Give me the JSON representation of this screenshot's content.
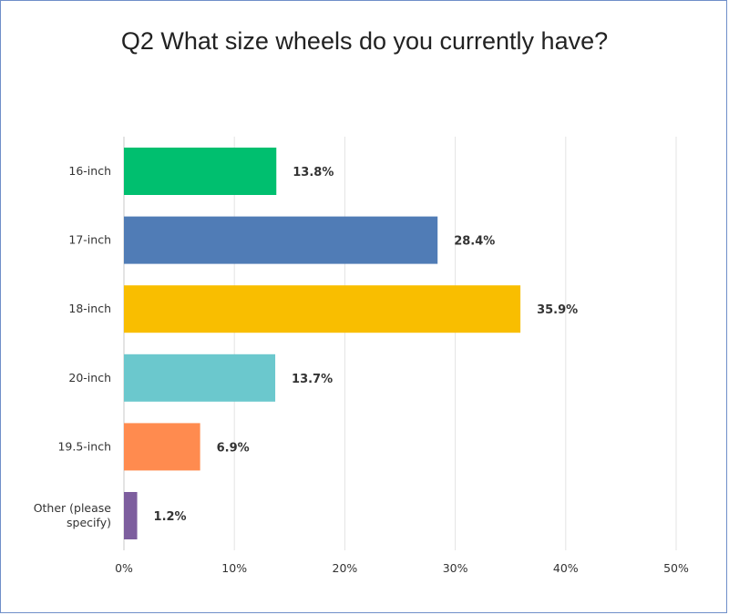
{
  "chart_data": {
    "type": "bar",
    "orientation": "horizontal",
    "title": "Q2 What size wheels do you currently have?",
    "categories": [
      "16-inch",
      "17-inch",
      "18-inch",
      "20-inch",
      "19.5-inch",
      "Other (please specify)"
    ],
    "category_lines": [
      [
        "16-inch"
      ],
      [
        "17-inch"
      ],
      [
        "18-inch"
      ],
      [
        "20-inch"
      ],
      [
        "19.5-inch"
      ],
      [
        "Other (please",
        "specify)"
      ]
    ],
    "values": [
      13.8,
      28.4,
      35.9,
      13.7,
      6.9,
      1.2
    ],
    "data_labels": [
      "13.8%",
      "28.4%",
      "35.9%",
      "13.7%",
      "6.9%",
      "1.2%"
    ],
    "bar_colors": [
      "#00bf6f",
      "#507cb6",
      "#f9be00",
      "#6bc8cd",
      "#ff8b4f",
      "#7d5e9e"
    ],
    "xlim": [
      0,
      50
    ],
    "x_ticks": [
      0,
      10,
      20,
      30,
      40,
      50
    ],
    "x_tick_labels": [
      "0%",
      "10%",
      "20%",
      "30%",
      "40%",
      "50%"
    ],
    "grid": true,
    "legend": "none"
  }
}
